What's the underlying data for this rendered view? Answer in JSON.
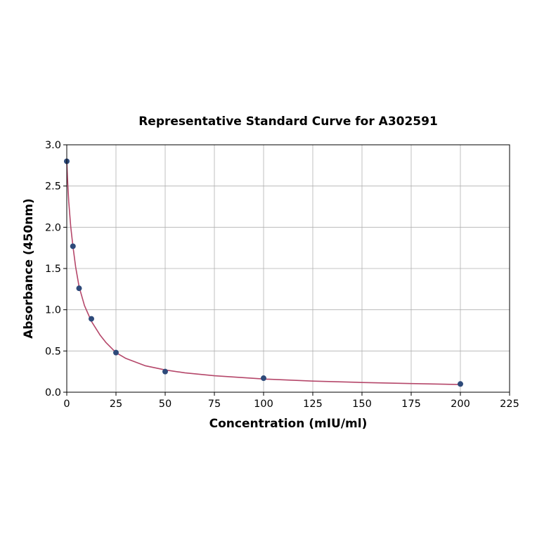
{
  "chart_data": {
    "type": "scatter",
    "title": "Representative Standard Curve for A302591",
    "xlabel": "Concentration (mIU/ml)",
    "ylabel": "Absorbance (450nm)",
    "xlim": [
      0,
      225
    ],
    "ylim": [
      0,
      3.0
    ],
    "x_ticks": [
      0,
      25,
      50,
      75,
      100,
      125,
      150,
      175,
      200,
      225
    ],
    "y_ticks": [
      0.0,
      0.5,
      1.0,
      1.5,
      2.0,
      2.5,
      3.0
    ],
    "x_tick_labels": [
      "0",
      "25",
      "50",
      "75",
      "100",
      "125",
      "150",
      "175",
      "200",
      "225"
    ],
    "y_tick_labels": [
      "0.0",
      "0.5",
      "1.0",
      "1.5",
      "2.0",
      "2.5",
      "3.0"
    ],
    "grid": true,
    "series": [
      {
        "kind": "points",
        "x": [
          0,
          3.125,
          6.25,
          12.5,
          25,
          50,
          100,
          200
        ],
        "y": [
          2.8,
          1.77,
          1.26,
          0.89,
          0.48,
          0.25,
          0.17,
          0.1
        ],
        "color": "#2e4a7a"
      },
      {
        "kind": "fit-curve",
        "x": [
          0,
          0.5,
          1,
          2,
          3.125,
          4.5,
          6.25,
          9,
          12.5,
          17,
          20,
          25,
          30,
          40,
          50,
          60,
          75,
          100,
          125,
          150,
          175,
          200
        ],
        "y": [
          2.8,
          2.53,
          2.31,
          2.01,
          1.77,
          1.52,
          1.28,
          1.05,
          0.86,
          0.69,
          0.6,
          0.48,
          0.41,
          0.32,
          0.27,
          0.235,
          0.2,
          0.16,
          0.135,
          0.118,
          0.105,
          0.093
        ],
        "color": "#b5476a"
      }
    ]
  }
}
